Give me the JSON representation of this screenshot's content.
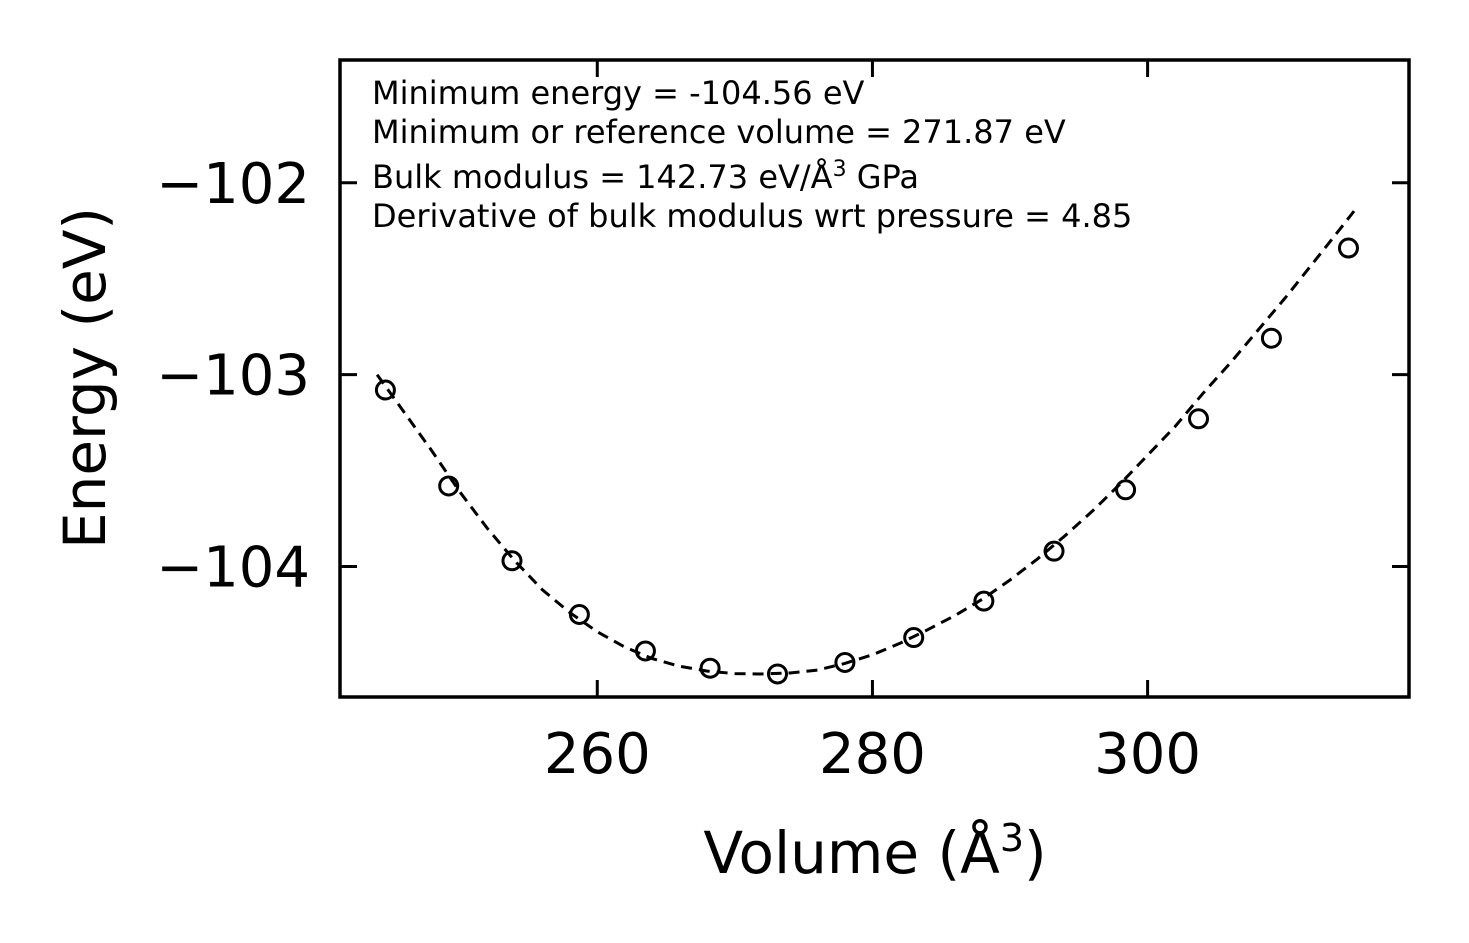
{
  "chart_data": {
    "type": "scatter",
    "title": "",
    "xlabel": "Volume (Å",
    "xlabel_sup": "3",
    "xlabel_close": ")",
    "ylabel": "Energy (eV)",
    "xlim": [
      241.3,
      319.0
    ],
    "ylim": [
      -104.68,
      -101.36
    ],
    "xticks": [
      260,
      280,
      300
    ],
    "xtick_labels": [
      "260",
      "280",
      "300"
    ],
    "yticks": [
      -102,
      -103,
      -104
    ],
    "ytick_labels": [
      "−102",
      "−103",
      "−104"
    ],
    "grid": false,
    "annotations": [
      "Minimum energy = -104.56 eV",
      "Minimum or reference volume = 271.87 eV",
      "Bulk modulus = 142.73 eV/Å",
      "3",
      " GPa",
      "Derivative of bulk modulus wrt pressure = 4.85"
    ],
    "series": [
      {
        "style": "open-circle-markers",
        "color": "#000000",
        "x": [
          244.6,
          249.2,
          253.8,
          258.7,
          263.5,
          268.2,
          273.1,
          278.0,
          283.0,
          288.1,
          293.2,
          298.4,
          303.7,
          309.0,
          314.6
        ],
        "y": [
          -103.08,
          -103.58,
          -103.97,
          -104.25,
          -104.44,
          -104.53,
          -104.56,
          -104.5,
          -104.37,
          -104.18,
          -103.92,
          -103.6,
          -103.23,
          -102.81,
          -102.34
        ]
      },
      {
        "style": "dashed-fit-line",
        "color": "#000000",
        "x": [
          244.0,
          246.0,
          248.0,
          250.0,
          252.0,
          254.0,
          256.0,
          258.0,
          260.0,
          262.0,
          264.0,
          266.0,
          268.0,
          270.0,
          271.87,
          274.0,
          276.0,
          278.0,
          280.0,
          282.0,
          284.0,
          286.0,
          288.0,
          290.0,
          292.0,
          294.0,
          296.0,
          298.0,
          300.0,
          302.0,
          304.0,
          306.0,
          308.0,
          310.0,
          312.0,
          314.0,
          315.2
        ],
        "y": [
          -103.0,
          -103.2,
          -103.4,
          -103.61,
          -103.8,
          -103.97,
          -104.12,
          -104.24,
          -104.34,
          -104.42,
          -104.48,
          -104.52,
          -104.545,
          -104.558,
          -104.56,
          -104.555,
          -104.54,
          -104.505,
          -104.46,
          -104.4,
          -104.33,
          -104.255,
          -104.17,
          -104.07,
          -103.96,
          -103.84,
          -103.71,
          -103.57,
          -103.42,
          -103.27,
          -103.1,
          -102.94,
          -102.77,
          -102.6,
          -102.42,
          -102.24,
          -102.13
        ]
      }
    ]
  }
}
